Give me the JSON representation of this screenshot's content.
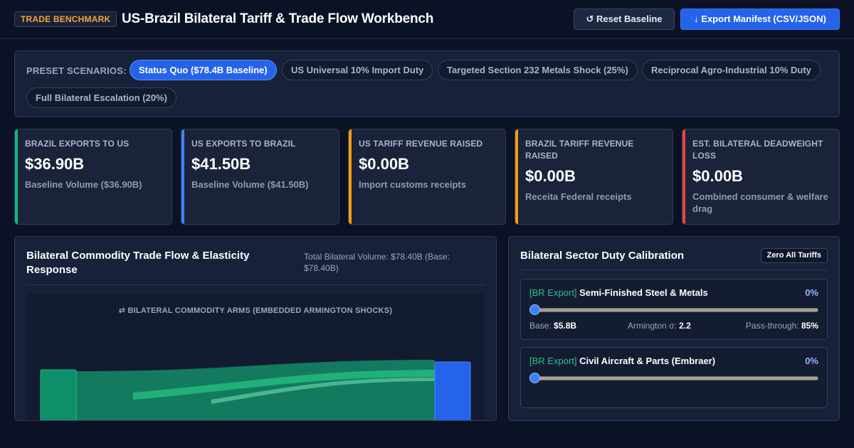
{
  "header": {
    "badge": "TRADE BENCHMARK",
    "title": "US-Brazil Bilateral Tariff & Trade Flow Workbench",
    "reset_label": "↺ Reset Baseline",
    "export_label": "↓ Export Manifest (CSV/JSON)"
  },
  "presets": {
    "label": "PRESET SCENARIOS:",
    "items": [
      {
        "label": "Status Quo ($78.4B Baseline)",
        "active": true
      },
      {
        "label": "US Universal 10% Import Duty",
        "active": false
      },
      {
        "label": "Targeted Section 232 Metals Shock (25%)",
        "active": false
      },
      {
        "label": "Reciprocal Agro-Industrial 10% Duty",
        "active": false
      },
      {
        "label": "Full Bilateral Escalation (20%)",
        "active": false
      }
    ]
  },
  "kpis": [
    {
      "label": "BRAZIL EXPORTS TO US",
      "value": "$36.90B",
      "sub": "Baseline Volume ($36.90B)",
      "color": "#10b981"
    },
    {
      "label": "US EXPORTS TO BRAZIL",
      "value": "$41.50B",
      "sub": "Baseline Volume ($41.50B)",
      "color": "#3b82f6"
    },
    {
      "label": "US TARIFF REVENUE RAISED",
      "value": "$0.00B",
      "sub": "Import customs receipts",
      "color": "#f59e0b"
    },
    {
      "label": "BRAZIL TARIFF REVENUE RAISED",
      "value": "$0.00B",
      "sub": "Receita Federal receipts",
      "color": "#f59e0b"
    },
    {
      "label": "EST. BILATERAL DEADWEIGHT LOSS",
      "value": "$0.00B",
      "sub": "Combined consumer & welfare drag",
      "color": "#ef4444"
    }
  ],
  "flow_panel": {
    "title": "Bilateral Commodity Trade Flow & Elasticity Response",
    "volume_note": "Total Bilateral Volume: $78.40B (Base: $78.40B)",
    "caption": "⇄ BILATERAL COMMODITY ARMS (EMBEDDED ARMINGTON SHOCKS)"
  },
  "duty_panel": {
    "title": "Bilateral Sector Duty Calibration",
    "zero_label": "Zero All Tariffs",
    "sectors": [
      {
        "tag": "[BR Export]",
        "name": "Semi-Finished Steel & Metals",
        "pct": "0%",
        "base_label": "Base:",
        "base": "$5.8B",
        "sigma_label": "Armington σ:",
        "sigma": "2.2",
        "pass_label": "Pass-through:",
        "pass": "85%"
      },
      {
        "tag": "[BR Export]",
        "name": "Civil Aircraft & Parts (Embraer)",
        "pct": "0%"
      }
    ]
  },
  "colors": {
    "accent": "#2563eb",
    "brazil": "#10b981",
    "us": "#3b82f6",
    "revenue": "#f59e0b",
    "loss": "#ef4444"
  }
}
